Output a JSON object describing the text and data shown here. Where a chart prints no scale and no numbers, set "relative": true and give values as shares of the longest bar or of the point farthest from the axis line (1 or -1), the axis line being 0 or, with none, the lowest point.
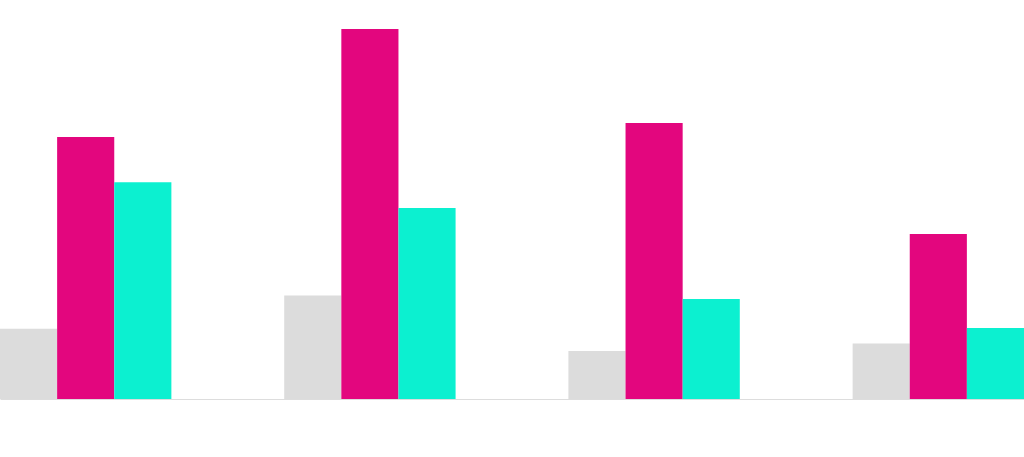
{
  "chart_data": {
    "type": "bar",
    "relative": true,
    "categories": [
      null,
      null,
      null,
      null
    ],
    "series": [
      {
        "color": "#dcdcdc",
        "values": [
          0.19,
          0.28,
          0.13,
          0.15
        ]
      },
      {
        "color": "#e3067e",
        "values": [
          0.708,
          1,
          0.746,
          0.446
        ]
      },
      {
        "color": "#0cf0d0",
        "values": [
          0.586,
          0.516,
          0.27,
          0.192
        ]
      }
    ]
  }
}
